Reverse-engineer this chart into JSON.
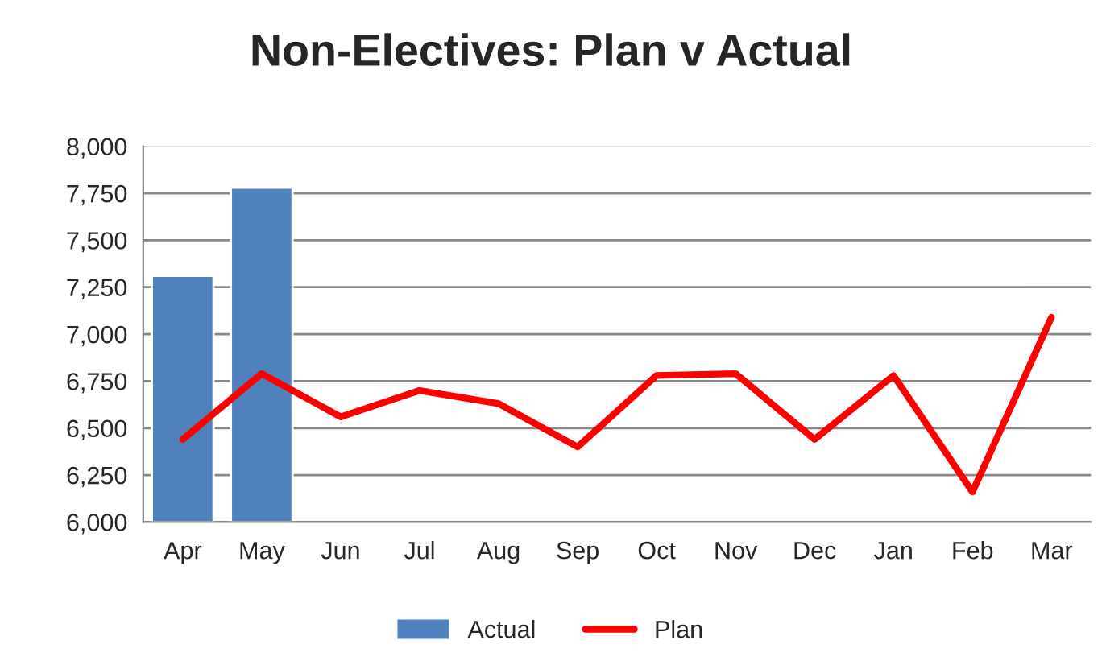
{
  "chart_data": {
    "type": "bar",
    "title": "Non-Electives: Plan v Actual",
    "categories": [
      "Apr",
      "May",
      "Jun",
      "Jul",
      "Aug",
      "Sep",
      "Oct",
      "Nov",
      "Dec",
      "Jan",
      "Feb",
      "Mar"
    ],
    "series": [
      {
        "name": "Actual",
        "color": "#4f81bd",
        "values": [
          7310,
          7780,
          null,
          null,
          null,
          null,
          null,
          null,
          null,
          null,
          null,
          null
        ]
      },
      {
        "name": "Plan",
        "type": "line",
        "color": "#ff0000",
        "values": [
          6440,
          6790,
          6560,
          6700,
          6630,
          6400,
          6780,
          6790,
          6440,
          6780,
          6160,
          7090
        ]
      }
    ],
    "ylim": [
      6000,
      8000
    ],
    "yticks": [
      {
        "value": 6000,
        "label": "6,000"
      },
      {
        "value": 6250,
        "label": "6,250"
      },
      {
        "value": 6500,
        "label": "6,500"
      },
      {
        "value": 6750,
        "label": "6,750"
      },
      {
        "value": 7000,
        "label": "7,000"
      },
      {
        "value": 7250,
        "label": "7,250"
      },
      {
        "value": 7500,
        "label": "7,500"
      },
      {
        "value": 7750,
        "label": "7,750"
      },
      {
        "value": 8000,
        "label": "8,000"
      }
    ],
    "grid": "y",
    "legend": "bottom"
  }
}
